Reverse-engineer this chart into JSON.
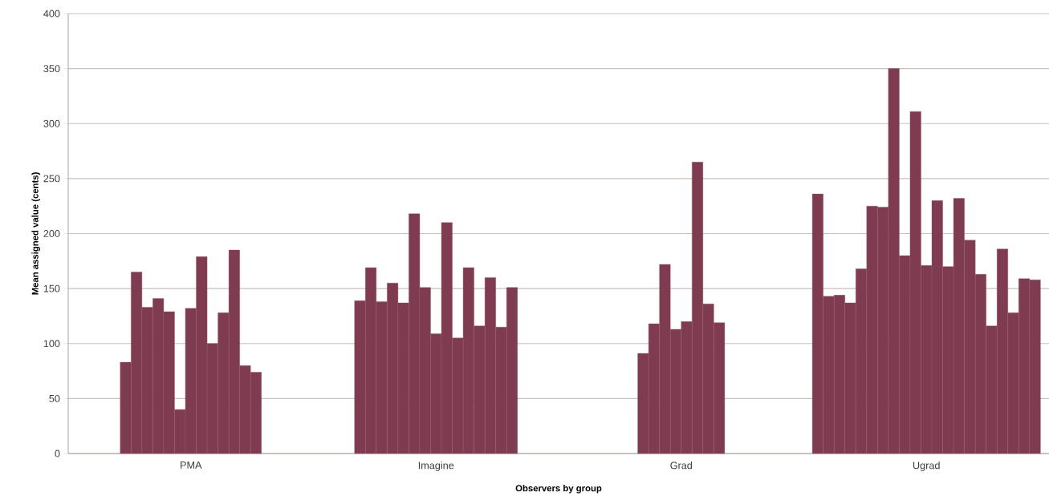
{
  "chart_data": {
    "type": "bar",
    "xlabel": "Observers by group",
    "ylabel": "Mean assigned value (cents)",
    "categories": [
      "PMA",
      "Imagine",
      "Grad",
      "Ugrad"
    ],
    "color": "#7f3c50",
    "series": [
      {
        "values": [
          83,
          139,
          91,
          236
        ]
      },
      {
        "values": [
          165,
          169,
          118,
          143
        ]
      },
      {
        "values": [
          133,
          138,
          172,
          144
        ]
      },
      {
        "values": [
          141,
          155,
          113,
          137
        ]
      },
      {
        "values": [
          129,
          137,
          120,
          168
        ]
      },
      {
        "values": [
          40,
          218,
          265,
          225
        ]
      },
      {
        "values": [
          132,
          151,
          136,
          224
        ]
      },
      {
        "values": [
          179,
          109,
          119,
          350
        ]
      },
      {
        "values": [
          100,
          210,
          null,
          180
        ]
      },
      {
        "values": [
          128,
          105,
          null,
          311
        ]
      },
      {
        "values": [
          185,
          169,
          null,
          171
        ]
      },
      {
        "values": [
          80,
          116,
          null,
          230
        ]
      },
      {
        "values": [
          74,
          160,
          null,
          170
        ]
      },
      {
        "values": [
          null,
          115,
          null,
          232
        ]
      },
      {
        "values": [
          null,
          151,
          null,
          194
        ]
      },
      {
        "values": [
          null,
          null,
          null,
          163
        ]
      },
      {
        "values": [
          null,
          null,
          null,
          116
        ]
      },
      {
        "values": [
          null,
          null,
          null,
          186
        ]
      },
      {
        "values": [
          null,
          null,
          null,
          128
        ]
      },
      {
        "values": [
          null,
          null,
          null,
          159
        ]
      },
      {
        "values": [
          null,
          null,
          null,
          158
        ]
      }
    ],
    "ylim": [
      0,
      400
    ],
    "yticks": [
      0,
      50,
      100,
      150,
      200,
      250,
      300,
      350,
      400
    ],
    "grid": "y",
    "legend": false
  }
}
